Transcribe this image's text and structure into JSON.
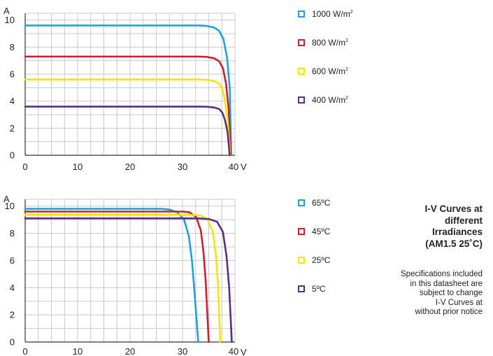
{
  "chart_data": [
    {
      "type": "line",
      "xlabel": "V",
      "ylabel": "A",
      "xlim": [
        0,
        40
      ],
      "ylim": [
        0,
        10.5
      ],
      "xticks": [
        0,
        10,
        20,
        30,
        40
      ],
      "yticks": [
        0,
        2,
        4,
        6,
        8,
        10
      ],
      "grid": true,
      "legend_position": "right",
      "series": [
        {
          "name": "1000 W/m",
          "name_sup": "2",
          "color": "#1ea0dc",
          "x": [
            0,
            30,
            33,
            34.5,
            36,
            37,
            37.8,
            38.5,
            39,
            39.3
          ],
          "y": [
            9.6,
            9.6,
            9.6,
            9.57,
            9.45,
            9.2,
            8.6,
            7.2,
            5.0,
            0
          ]
        },
        {
          "name": "800 W/m",
          "name_sup": "2",
          "color": "#c8202e",
          "x": [
            0,
            30,
            33,
            34.5,
            36,
            37,
            37.7,
            38.3,
            38.8,
            39.2
          ],
          "y": [
            7.3,
            7.3,
            7.3,
            7.28,
            7.18,
            6.95,
            6.45,
            5.3,
            3.4,
            0
          ]
        },
        {
          "name": "600 W/m",
          "name_sup": "2",
          "color": "#f5e600",
          "x": [
            0,
            30,
            33,
            34.5,
            36,
            37,
            37.6,
            38.1,
            38.6,
            39.1
          ],
          "y": [
            5.6,
            5.6,
            5.6,
            5.58,
            5.5,
            5.3,
            4.9,
            4.0,
            2.6,
            0
          ]
        },
        {
          "name": "400 W/m",
          "name_sup": "2",
          "color": "#5b2d83",
          "x": [
            0,
            30,
            33,
            34.5,
            36,
            37,
            37.6,
            38.1,
            38.6,
            39.0
          ],
          "y": [
            3.6,
            3.6,
            3.6,
            3.59,
            3.54,
            3.42,
            3.15,
            2.6,
            1.7,
            0
          ]
        }
      ]
    },
    {
      "type": "line",
      "xlabel": "V",
      "ylabel": "A",
      "xlim": [
        0,
        40
      ],
      "ylim": [
        0,
        10.5
      ],
      "xticks": [
        0,
        10,
        20,
        30,
        40
      ],
      "yticks": [
        0,
        2,
        4,
        6,
        8,
        10
      ],
      "grid": true,
      "legend_position": "right",
      "series": [
        {
          "name": "65ºC",
          "color": "#1ea0dc",
          "x": [
            0,
            26,
            27.5,
            29,
            30.3,
            31.2,
            31.8,
            32.3,
            33.0
          ],
          "y": [
            9.8,
            9.8,
            9.75,
            9.55,
            9.0,
            7.8,
            6.0,
            3.6,
            0
          ]
        },
        {
          "name": "45ºC",
          "color": "#c8202e",
          "x": [
            0,
            30,
            31.3,
            32.6,
            33.5,
            34.0,
            34.4,
            35.0
          ],
          "y": [
            9.6,
            9.6,
            9.55,
            9.2,
            8.2,
            6.6,
            4.6,
            0
          ]
        },
        {
          "name": "25ºC",
          "color": "#f5e600",
          "x": [
            0,
            32,
            33.5,
            34.8,
            35.8,
            36.4,
            36.8,
            37.2
          ],
          "y": [
            9.35,
            9.35,
            9.3,
            9.0,
            8.1,
            6.3,
            4.0,
            0
          ]
        },
        {
          "name": "5ºC",
          "color": "#5b2d83",
          "x": [
            0,
            33,
            35,
            36.6,
            37.7,
            38.4,
            38.9,
            39.4
          ],
          "y": [
            9.1,
            9.1,
            9.05,
            8.85,
            8.1,
            6.3,
            4.0,
            0
          ]
        }
      ]
    }
  ],
  "note": {
    "title_lines": [
      "I-V Curves at",
      "different",
      "Irradiances",
      "(AM1.5 25˚C)"
    ],
    "body_lines": [
      "Specifications included",
      "in this datasheet are",
      "subject to change",
      "I-V Curves at",
      "without prior notice"
    ]
  }
}
